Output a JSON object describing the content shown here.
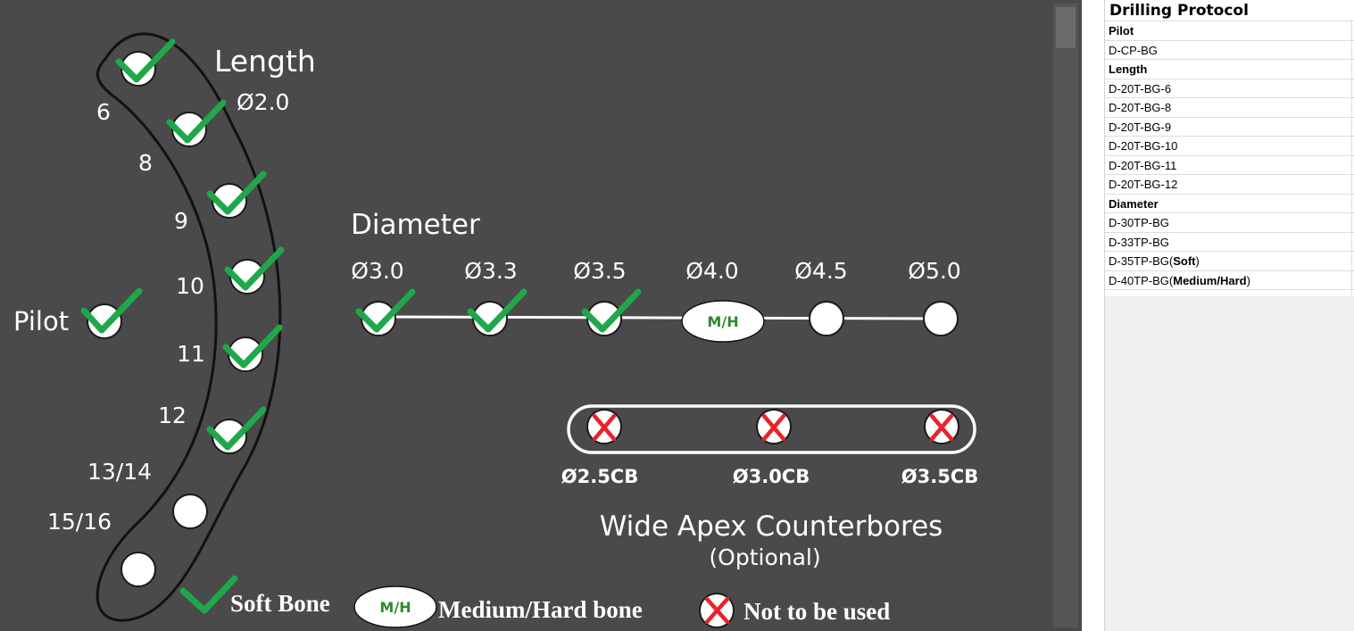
{
  "diagram": {
    "length": {
      "title": "Length",
      "drill_label": "Ø2.0",
      "items": [
        {
          "label": "6",
          "status": "soft"
        },
        {
          "label": "8",
          "status": "soft"
        },
        {
          "label": "9",
          "status": "soft"
        },
        {
          "label": "10",
          "status": "soft"
        },
        {
          "label": "11",
          "status": "soft"
        },
        {
          "label": "12",
          "status": "soft"
        },
        {
          "label": "13/14",
          "status": "none"
        },
        {
          "label": "15/16",
          "status": "none"
        }
      ]
    },
    "pilot": {
      "label": "Pilot",
      "status": "soft"
    },
    "diameter": {
      "title": "Diameter",
      "items": [
        {
          "label": "Ø3.0",
          "status": "soft"
        },
        {
          "label": "Ø3.3",
          "status": "soft"
        },
        {
          "label": "Ø3.5",
          "status": "soft"
        },
        {
          "label": "Ø4.0",
          "status": "medium_hard",
          "badge": "M/H"
        },
        {
          "label": "Ø4.5",
          "status": "none"
        },
        {
          "label": "Ø5.0",
          "status": "none"
        }
      ]
    },
    "counterbores": {
      "title": "Wide Apex Counterbores",
      "subtitle": "(Optional)",
      "items": [
        {
          "label": "Ø2.5CB",
          "status": "not_used"
        },
        {
          "label": "Ø3.0CB",
          "status": "not_used"
        },
        {
          "label": "Ø3.5CB",
          "status": "not_used"
        }
      ]
    },
    "legend": {
      "soft": "Soft Bone",
      "mh_badge": "M/H",
      "medium_hard": "Medium/Hard bone",
      "not_used": "Not to be used"
    },
    "colors": {
      "background": "#4a4a4a",
      "check": "#1fa84a",
      "cross": "#e8232a",
      "mh_text": "#2e8b2e"
    }
  },
  "protocol": {
    "title": "Drilling Protocol",
    "rows": [
      {
        "text": "Pilot",
        "header": true
      },
      {
        "text": "D-CP-BG"
      },
      {
        "text": "Length",
        "header": true
      },
      {
        "text": "D-20T-BG-6"
      },
      {
        "text": "D-20T-BG-8"
      },
      {
        "text": "D-20T-BG-9"
      },
      {
        "text": "D-20T-BG-10"
      },
      {
        "text": "D-20T-BG-11"
      },
      {
        "text": "D-20T-BG-12"
      },
      {
        "text": "Diameter",
        "header": true
      },
      {
        "text": "D-30TP-BG"
      },
      {
        "text": "D-33TP-BG"
      },
      {
        "text": "D-35TP-BG(",
        "bold": "Soft",
        "suffix": ")"
      },
      {
        "text": "D-40TP-BG(",
        "bold": "Medium/Hard",
        "suffix": ")"
      }
    ]
  }
}
